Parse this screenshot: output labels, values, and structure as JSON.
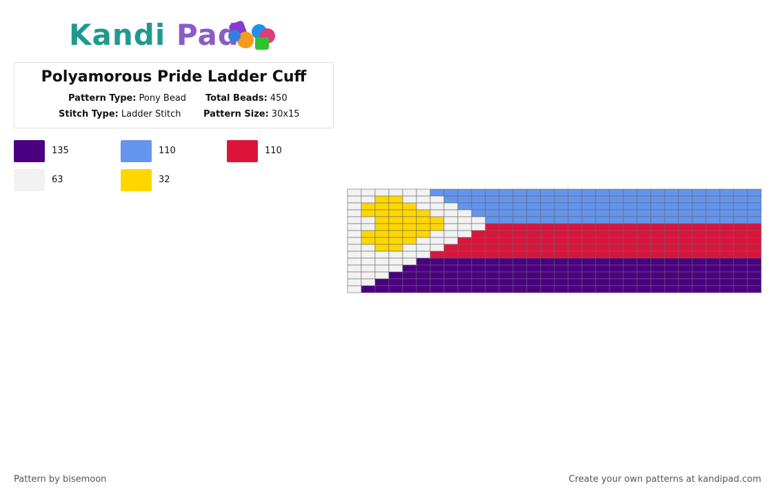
{
  "logo": {
    "part1": "Kandi",
    "part2": "Pad"
  },
  "title": "Polyamorous Pride Ladder Cuff",
  "info": {
    "pattern_type_label": "Pattern Type:",
    "pattern_type": "Pony Bead",
    "total_beads_label": "Total Beads:",
    "total_beads": "450",
    "stitch_type_label": "Stitch Type:",
    "stitch_type": "Ladder Stitch",
    "pattern_size_label": "Pattern Size:",
    "pattern_size": "30x15"
  },
  "legend": [
    {
      "color": "#4b0082",
      "count": 135
    },
    {
      "color": "#6495ed",
      "count": 110
    },
    {
      "color": "#dc143c",
      "count": 110
    },
    {
      "color": "#f2f2f2",
      "count": 63
    },
    {
      "color": "#ffd700",
      "count": 32
    }
  ],
  "grid": [
    [
      3,
      3,
      3,
      3,
      3,
      3,
      1,
      1,
      1,
      1,
      1,
      1,
      1,
      1,
      1,
      1,
      1,
      1,
      1,
      1,
      1,
      1,
      1,
      1,
      1,
      1,
      1,
      1,
      1,
      1
    ],
    [
      3,
      3,
      4,
      4,
      3,
      3,
      3,
      1,
      1,
      1,
      1,
      1,
      1,
      1,
      1,
      1,
      1,
      1,
      1,
      1,
      1,
      1,
      1,
      1,
      1,
      1,
      1,
      1,
      1,
      1
    ],
    [
      3,
      4,
      4,
      4,
      4,
      3,
      3,
      3,
      1,
      1,
      1,
      1,
      1,
      1,
      1,
      1,
      1,
      1,
      1,
      1,
      1,
      1,
      1,
      1,
      1,
      1,
      1,
      1,
      1,
      1
    ],
    [
      3,
      4,
      4,
      4,
      4,
      4,
      3,
      3,
      3,
      1,
      1,
      1,
      1,
      1,
      1,
      1,
      1,
      1,
      1,
      1,
      1,
      1,
      1,
      1,
      1,
      1,
      1,
      1,
      1,
      1
    ],
    [
      3,
      3,
      4,
      4,
      4,
      4,
      4,
      3,
      3,
      3,
      1,
      1,
      1,
      1,
      1,
      1,
      1,
      1,
      1,
      1,
      1,
      1,
      1,
      1,
      1,
      1,
      1,
      1,
      1,
      1
    ],
    [
      3,
      3,
      4,
      4,
      4,
      4,
      4,
      3,
      3,
      3,
      2,
      2,
      2,
      2,
      2,
      2,
      2,
      2,
      2,
      2,
      2,
      2,
      2,
      2,
      2,
      2,
      2,
      2,
      2,
      2
    ],
    [
      3,
      4,
      4,
      4,
      4,
      4,
      3,
      3,
      3,
      2,
      2,
      2,
      2,
      2,
      2,
      2,
      2,
      2,
      2,
      2,
      2,
      2,
      2,
      2,
      2,
      2,
      2,
      2,
      2,
      2
    ],
    [
      3,
      4,
      4,
      4,
      4,
      3,
      3,
      3,
      2,
      2,
      2,
      2,
      2,
      2,
      2,
      2,
      2,
      2,
      2,
      2,
      2,
      2,
      2,
      2,
      2,
      2,
      2,
      2,
      2,
      2
    ],
    [
      3,
      3,
      4,
      4,
      3,
      3,
      3,
      2,
      2,
      2,
      2,
      2,
      2,
      2,
      2,
      2,
      2,
      2,
      2,
      2,
      2,
      2,
      2,
      2,
      2,
      2,
      2,
      2,
      2,
      2
    ],
    [
      3,
      3,
      3,
      3,
      3,
      3,
      2,
      2,
      2,
      2,
      2,
      2,
      2,
      2,
      2,
      2,
      2,
      2,
      2,
      2,
      2,
      2,
      2,
      2,
      2,
      2,
      2,
      2,
      2,
      2
    ],
    [
      3,
      3,
      3,
      3,
      3,
      0,
      0,
      0,
      0,
      0,
      0,
      0,
      0,
      0,
      0,
      0,
      0,
      0,
      0,
      0,
      0,
      0,
      0,
      0,
      0,
      0,
      0,
      0,
      0,
      0
    ],
    [
      3,
      3,
      3,
      3,
      0,
      0,
      0,
      0,
      0,
      0,
      0,
      0,
      0,
      0,
      0,
      0,
      0,
      0,
      0,
      0,
      0,
      0,
      0,
      0,
      0,
      0,
      0,
      0,
      0,
      0
    ],
    [
      3,
      3,
      3,
      0,
      0,
      0,
      0,
      0,
      0,
      0,
      0,
      0,
      0,
      0,
      0,
      0,
      0,
      0,
      0,
      0,
      0,
      0,
      0,
      0,
      0,
      0,
      0,
      0,
      0,
      0
    ],
    [
      3,
      3,
      0,
      0,
      0,
      0,
      0,
      0,
      0,
      0,
      0,
      0,
      0,
      0,
      0,
      0,
      0,
      0,
      0,
      0,
      0,
      0,
      0,
      0,
      0,
      0,
      0,
      0,
      0,
      0
    ],
    [
      3,
      0,
      0,
      0,
      0,
      0,
      0,
      0,
      0,
      0,
      0,
      0,
      0,
      0,
      0,
      0,
      0,
      0,
      0,
      0,
      0,
      0,
      0,
      0,
      0,
      0,
      0,
      0,
      0,
      0
    ]
  ],
  "footer": {
    "left": "Pattern by bisemoon",
    "right": "Create your own patterns at kandipad.com"
  }
}
